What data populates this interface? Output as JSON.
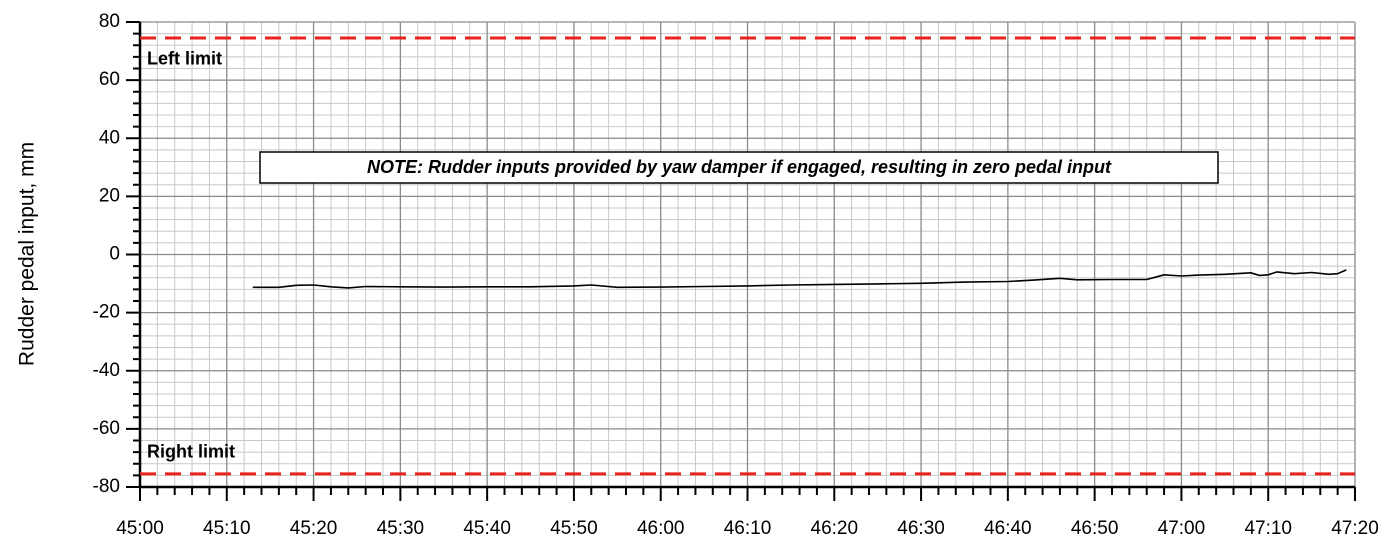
{
  "chart_data": {
    "type": "line",
    "ylabel": "Rudder pedal input, mm",
    "note": "NOTE: Rudder inputs provided by yaw damper if engaged, resulting in zero pedal input",
    "xlim": [
      2700,
      2840
    ],
    "xticks": [
      {
        "value": 2700,
        "label": "45:00"
      },
      {
        "value": 2710,
        "label": "45:10"
      },
      {
        "value": 2720,
        "label": "45:20"
      },
      {
        "value": 2730,
        "label": "45:30"
      },
      {
        "value": 2740,
        "label": "45:40"
      },
      {
        "value": 2750,
        "label": "45:50"
      },
      {
        "value": 2760,
        "label": "46:00"
      },
      {
        "value": 2770,
        "label": "46:10"
      },
      {
        "value": 2780,
        "label": "46:20"
      },
      {
        "value": 2790,
        "label": "46:30"
      },
      {
        "value": 2800,
        "label": "46:40"
      },
      {
        "value": 2810,
        "label": "46:50"
      },
      {
        "value": 2820,
        "label": "47:00"
      },
      {
        "value": 2830,
        "label": "47:10"
      },
      {
        "value": 2840,
        "label": "47:20"
      }
    ],
    "ylim": [
      -80,
      80
    ],
    "yticks": [
      -80,
      -60,
      -40,
      -20,
      0,
      20,
      40,
      60,
      80
    ],
    "grid": true,
    "minor_divisions": 5,
    "limits": [
      {
        "label": "Left limit",
        "value": 74.5,
        "color": "#e8231e"
      },
      {
        "label": "Right limit",
        "value": -75.5,
        "color": "#e8231e"
      }
    ],
    "series": [
      {
        "color": "#000000",
        "x": [
          2713,
          2716,
          2718,
          2720,
          2722,
          2724,
          2726,
          2730,
          2735,
          2740,
          2745,
          2750,
          2752,
          2755,
          2760,
          2765,
          2770,
          2775,
          2780,
          2785,
          2790,
          2795,
          2800,
          2803,
          2806,
          2808,
          2812,
          2816,
          2817,
          2818,
          2820,
          2822,
          2825,
          2828,
          2829,
          2830,
          2831,
          2833,
          2835,
          2837,
          2838,
          2839
        ],
        "values": [
          -11.3,
          -11.3,
          -10.6,
          -10.5,
          -11.1,
          -11.5,
          -11.0,
          -11.1,
          -11.2,
          -11.1,
          -11.1,
          -10.8,
          -10.5,
          -11.3,
          -11.2,
          -11.0,
          -10.8,
          -10.5,
          -10.3,
          -10.1,
          -9.9,
          -9.5,
          -9.3,
          -8.8,
          -8.2,
          -8.7,
          -8.6,
          -8.6,
          -7.8,
          -7.0,
          -7.4,
          -7.1,
          -6.8,
          -6.3,
          -7.2,
          -7.0,
          -6.0,
          -6.6,
          -6.2,
          -6.8,
          -6.6,
          -5.3
        ]
      }
    ]
  }
}
